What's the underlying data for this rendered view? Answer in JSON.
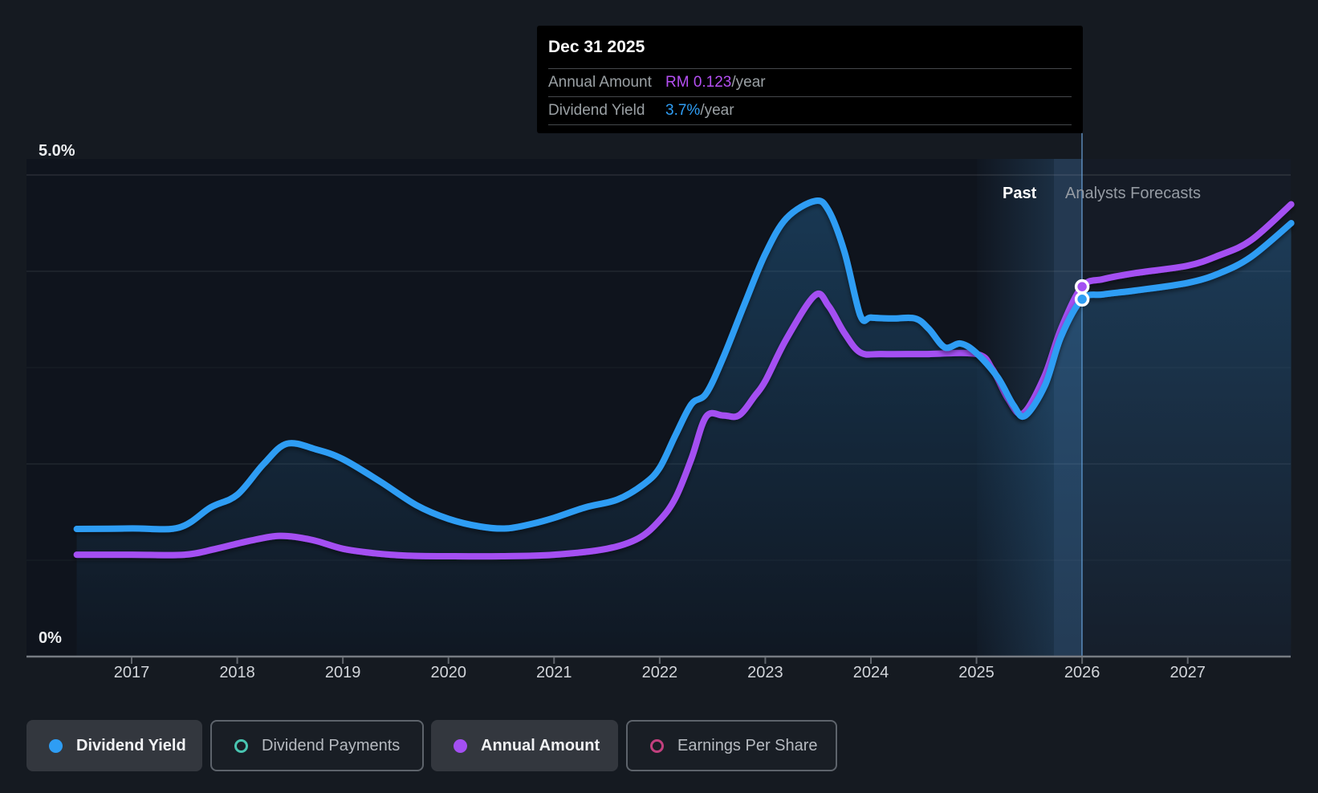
{
  "tooltip": {
    "date": "Dec 31 2025",
    "rows": [
      {
        "label": "Annual Amount",
        "value": "RM 0.123",
        "unit": "/year"
      },
      {
        "label": "Dividend Yield",
        "value": "3.7%",
        "unit": "/year"
      }
    ]
  },
  "annotations": {
    "past_label": "Past",
    "forecast_label": "Analysts Forecasts"
  },
  "legend": [
    {
      "label": "Dividend Yield",
      "active": true,
      "marker": "filled",
      "color": "#2e9df4"
    },
    {
      "label": "Dividend Payments",
      "active": false,
      "marker": "ring",
      "color": "#49c5b1"
    },
    {
      "label": "Annual Amount",
      "active": true,
      "marker": "filled",
      "color": "#a44ff2"
    },
    {
      "label": "Earnings Per Share",
      "active": false,
      "marker": "ring",
      "color": "#c2407e"
    }
  ],
  "chart_data": {
    "type": "line",
    "x_ticks": [
      "2017",
      "2018",
      "2019",
      "2020",
      "2021",
      "2022",
      "2023",
      "2024",
      "2025",
      "2026",
      "2027"
    ],
    "y_ticks": [
      {
        "label": "5.0%",
        "pct": 5,
        "dy": -41
      },
      {
        "label": "0%",
        "pct": 0,
        "dy": -34
      }
    ],
    "ylim": [
      0,
      5
    ],
    "xlim": [
      2016.48,
      2027.98
    ],
    "gridlines_pct": [
      5,
      4,
      3,
      2,
      1
    ],
    "past_band_start_year": 2025,
    "past_boundary_year": 2026,
    "past_boundary_date": "Dec 31 2025",
    "series": [
      {
        "name": "Dividend Yield",
        "unit": "%",
        "color": "#2e9df4",
        "fill_area": true,
        "marker_at": [
          2026.0,
          3.71
        ],
        "points": [
          [
            2016.48,
            1.325
          ],
          [
            2017.0,
            1.33
          ],
          [
            2017.45,
            1.34
          ],
          [
            2017.75,
            1.55
          ],
          [
            2018.0,
            1.68
          ],
          [
            2018.25,
            2.0
          ],
          [
            2018.47,
            2.21
          ],
          [
            2018.75,
            2.15
          ],
          [
            2019.0,
            2.05
          ],
          [
            2019.35,
            1.82
          ],
          [
            2019.7,
            1.57
          ],
          [
            2020.0,
            1.43
          ],
          [
            2020.3,
            1.35
          ],
          [
            2020.55,
            1.33
          ],
          [
            2020.8,
            1.38
          ],
          [
            2021.0,
            1.44
          ],
          [
            2021.3,
            1.55
          ],
          [
            2021.6,
            1.63
          ],
          [
            2021.85,
            1.79
          ],
          [
            2022.0,
            1.96
          ],
          [
            2022.15,
            2.3
          ],
          [
            2022.3,
            2.62
          ],
          [
            2022.44,
            2.73
          ],
          [
            2022.6,
            3.1
          ],
          [
            2022.8,
            3.65
          ],
          [
            2023.0,
            4.18
          ],
          [
            2023.2,
            4.55
          ],
          [
            2023.47,
            4.73
          ],
          [
            2023.6,
            4.63
          ],
          [
            2023.75,
            4.2
          ],
          [
            2023.9,
            3.54
          ],
          [
            2024.0,
            3.52
          ],
          [
            2024.2,
            3.51
          ],
          [
            2024.42,
            3.51
          ],
          [
            2024.55,
            3.4
          ],
          [
            2024.7,
            3.21
          ],
          [
            2024.85,
            3.25
          ],
          [
            2025.0,
            3.15
          ],
          [
            2025.2,
            2.9
          ],
          [
            2025.35,
            2.61
          ],
          [
            2025.46,
            2.5
          ],
          [
            2025.65,
            2.82
          ],
          [
            2025.8,
            3.32
          ],
          [
            2026.0,
            3.71
          ],
          [
            2026.2,
            3.76
          ],
          [
            2026.5,
            3.8
          ],
          [
            2027.0,
            3.88
          ],
          [
            2027.3,
            3.98
          ],
          [
            2027.6,
            4.15
          ],
          [
            2027.98,
            4.5
          ]
        ]
      },
      {
        "name": "Annual Amount",
        "unit": "RM",
        "color": "#a44ff2",
        "fill_area": false,
        "marker_at": [
          2026.0,
          0.1235
        ],
        "points": [
          [
            2016.48,
            0.034
          ],
          [
            2017.0,
            0.034
          ],
          [
            2017.5,
            0.034
          ],
          [
            2017.8,
            0.036
          ],
          [
            2018.1,
            0.0385
          ],
          [
            2018.4,
            0.0403
          ],
          [
            2018.7,
            0.039
          ],
          [
            2019.0,
            0.036
          ],
          [
            2019.3,
            0.0345
          ],
          [
            2019.6,
            0.0337
          ],
          [
            2020.0,
            0.0335
          ],
          [
            2020.5,
            0.0335
          ],
          [
            2021.0,
            0.034
          ],
          [
            2021.5,
            0.036
          ],
          [
            2021.8,
            0.0395
          ],
          [
            2022.0,
            0.0455
          ],
          [
            2022.15,
            0.053
          ],
          [
            2022.3,
            0.066
          ],
          [
            2022.44,
            0.0801
          ],
          [
            2022.6,
            0.0805
          ],
          [
            2022.75,
            0.0805
          ],
          [
            2022.9,
            0.087
          ],
          [
            2023.0,
            0.092
          ],
          [
            2023.2,
            0.106
          ],
          [
            2023.47,
            0.1206
          ],
          [
            2023.6,
            0.117
          ],
          [
            2023.75,
            0.108
          ],
          [
            2023.9,
            0.1015
          ],
          [
            2024.1,
            0.101
          ],
          [
            2024.5,
            0.101
          ],
          [
            2025.0,
            0.101
          ],
          [
            2025.15,
            0.096
          ],
          [
            2025.3,
            0.086
          ],
          [
            2025.44,
            0.0812
          ],
          [
            2025.64,
            0.0933
          ],
          [
            2025.8,
            0.1094
          ],
          [
            2026.0,
            0.1235
          ],
          [
            2026.2,
            0.126
          ],
          [
            2026.5,
            0.128
          ],
          [
            2027.0,
            0.1305
          ],
          [
            2027.3,
            0.134
          ],
          [
            2027.6,
            0.139
          ],
          [
            2027.98,
            0.151
          ]
        ]
      }
    ]
  }
}
